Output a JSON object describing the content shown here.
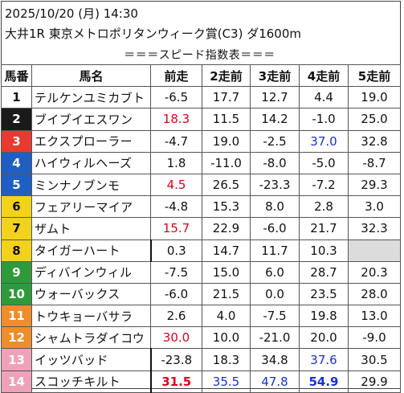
{
  "header": {
    "line1": "2025/10/20 (月) 14:30",
    "line2": "大井1R 東京メトロポリタンウィーク賞(C3) ダ1600m",
    "speed_title": "＝＝＝スピード指数表＝＝＝"
  },
  "columns": [
    "馬番",
    "馬名",
    "前走",
    "2走前",
    "3走前",
    "4走前",
    "5走前"
  ],
  "gate_colors": {
    "1": "#ffffff",
    "2": "#1a1a1a",
    "3": "#e63b2e",
    "4": "#1f5fc4",
    "5": "#f2d21a",
    "6": "#2f9a3a",
    "7": "#f08c2a",
    "8": "#f0a0b8"
  },
  "rows": [
    {
      "num": "1",
      "name": "テルケンユミカブト",
      "gate": "1",
      "v": [
        {
          "t": "-6.5"
        },
        {
          "t": "17.7"
        },
        {
          "t": "12.7"
        },
        {
          "t": "4.4"
        },
        {
          "t": "19.0"
        }
      ]
    },
    {
      "num": "2",
      "name": "ブイブイエスワン",
      "gate": "2",
      "v": [
        {
          "t": "18.3",
          "c": "red"
        },
        {
          "t": "11.5"
        },
        {
          "t": "14.2"
        },
        {
          "t": "-1.0"
        },
        {
          "t": "25.0"
        }
      ]
    },
    {
      "num": "3",
      "name": "エクスプローラー",
      "gate": "3",
      "v": [
        {
          "t": "-4.7"
        },
        {
          "t": "19.0"
        },
        {
          "t": "-2.5"
        },
        {
          "t": "37.0",
          "c": "blue"
        },
        {
          "t": "32.8"
        }
      ]
    },
    {
      "num": "4",
      "name": "ハイウィルヘーズ",
      "gate": "4",
      "v": [
        {
          "t": "1.8"
        },
        {
          "t": "-11.0"
        },
        {
          "t": "-8.0"
        },
        {
          "t": "-5.0"
        },
        {
          "t": "-8.7"
        }
      ]
    },
    {
      "num": "5",
      "name": "ミンナノブンモ",
      "gate": "4",
      "v": [
        {
          "t": "4.5",
          "c": "red"
        },
        {
          "t": "26.5"
        },
        {
          "t": "-23.3"
        },
        {
          "t": "-7.2"
        },
        {
          "t": "29.3"
        }
      ]
    },
    {
      "num": "6",
      "name": "フェアリーマイア",
      "gate": "5",
      "v": [
        {
          "t": "-4.8"
        },
        {
          "t": "15.3"
        },
        {
          "t": "8.0"
        },
        {
          "t": "2.8"
        },
        {
          "t": "3.0"
        }
      ]
    },
    {
      "num": "7",
      "name": "ザムト",
      "gate": "5",
      "v": [
        {
          "t": "15.7",
          "c": "red"
        },
        {
          "t": "22.9"
        },
        {
          "t": "-6.0"
        },
        {
          "t": "21.7"
        },
        {
          "t": "32.3"
        }
      ]
    },
    {
      "num": "8",
      "name": "タイガーハート",
      "gate": "5",
      "sep": true,
      "v": [
        {
          "t": "0.3"
        },
        {
          "t": "14.7"
        },
        {
          "t": "11.7"
        },
        {
          "t": "10.3"
        },
        {
          "t": "",
          "blank": true
        }
      ]
    },
    {
      "num": "9",
      "name": "ディバインウィル",
      "gate": "6",
      "v": [
        {
          "t": "-7.5"
        },
        {
          "t": "15.0"
        },
        {
          "t": "6.0"
        },
        {
          "t": "28.7"
        },
        {
          "t": "20.3"
        }
      ]
    },
    {
      "num": "10",
      "name": "ウォーバックス",
      "gate": "6",
      "v": [
        {
          "t": "-6.0"
        },
        {
          "t": "21.5"
        },
        {
          "t": "0.0"
        },
        {
          "t": "23.5"
        },
        {
          "t": "28.0"
        }
      ]
    },
    {
      "num": "11",
      "name": "トウキョーバサラ",
      "gate": "7",
      "v": [
        {
          "t": "2.6"
        },
        {
          "t": "4.0"
        },
        {
          "t": "-7.5"
        },
        {
          "t": "19.8"
        },
        {
          "t": "13.0"
        }
      ]
    },
    {
      "num": "12",
      "name": "シャムトラダイコウ",
      "gate": "7",
      "v": [
        {
          "t": "30.0",
          "c": "red"
        },
        {
          "t": "10.0"
        },
        {
          "t": "-21.0"
        },
        {
          "t": "20.0"
        },
        {
          "t": "-9.0"
        }
      ]
    },
    {
      "num": "13",
      "name": "イッツバッド",
      "gate": "8",
      "sep": true,
      "v": [
        {
          "t": "-23.8"
        },
        {
          "t": "18.3"
        },
        {
          "t": "34.8"
        },
        {
          "t": "37.6",
          "c": "blue"
        },
        {
          "t": "30.5"
        }
      ]
    },
    {
      "num": "14",
      "name": "スコッチキルト",
      "gate": "8",
      "sep": true,
      "v": [
        {
          "t": "31.5",
          "c": "red",
          "b": true
        },
        {
          "t": "35.5",
          "c": "blue"
        },
        {
          "t": "47.8",
          "c": "blue"
        },
        {
          "t": "54.9",
          "c": "blue",
          "b": true
        },
        {
          "t": "29.9"
        }
      ]
    }
  ]
}
